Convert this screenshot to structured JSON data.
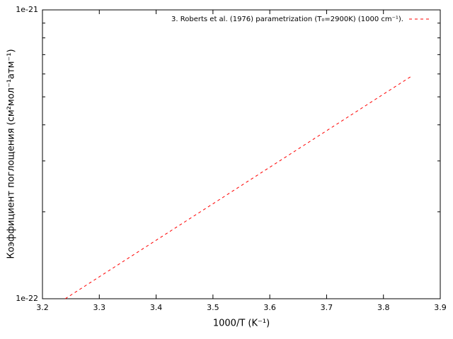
{
  "chart_data": {
    "type": "line",
    "x_label": "1000/T (K⁻¹)",
    "y_label": "Коэффициент поглощения (см²мол⁻¹атм⁻¹)",
    "x": [
      3.24,
      3.3,
      3.4,
      3.5,
      3.6,
      3.7,
      3.8,
      3.85
    ],
    "series": [
      {
        "name": "3. Roberts et al. (1976) parametrization (T₀=2900K) (1000 cm⁻¹).",
        "color": "#ff0000",
        "values": [
          1e-22,
          1.191e-22,
          1.594e-22,
          2.132e-22,
          2.853e-22,
          3.817e-22,
          5.107e-22,
          5.905e-22
        ]
      }
    ],
    "xlim": [
      3.2,
      3.9
    ],
    "xticks": [
      3.2,
      3.3,
      3.4,
      3.5,
      3.6,
      3.7,
      3.8,
      3.9
    ],
    "ylim": [
      1e-22,
      1e-21
    ],
    "y_log_scale": true,
    "yticks": [
      {
        "value": 1e-22,
        "label": "1e-22"
      },
      {
        "value": 1e-21,
        "label": "1e-21"
      }
    ],
    "y_minor_ticks": [
      2e-22,
      3e-22,
      4e-22,
      5e-22,
      6e-22,
      7e-22,
      8e-22,
      9e-22
    ],
    "legend_position": "top-right"
  }
}
